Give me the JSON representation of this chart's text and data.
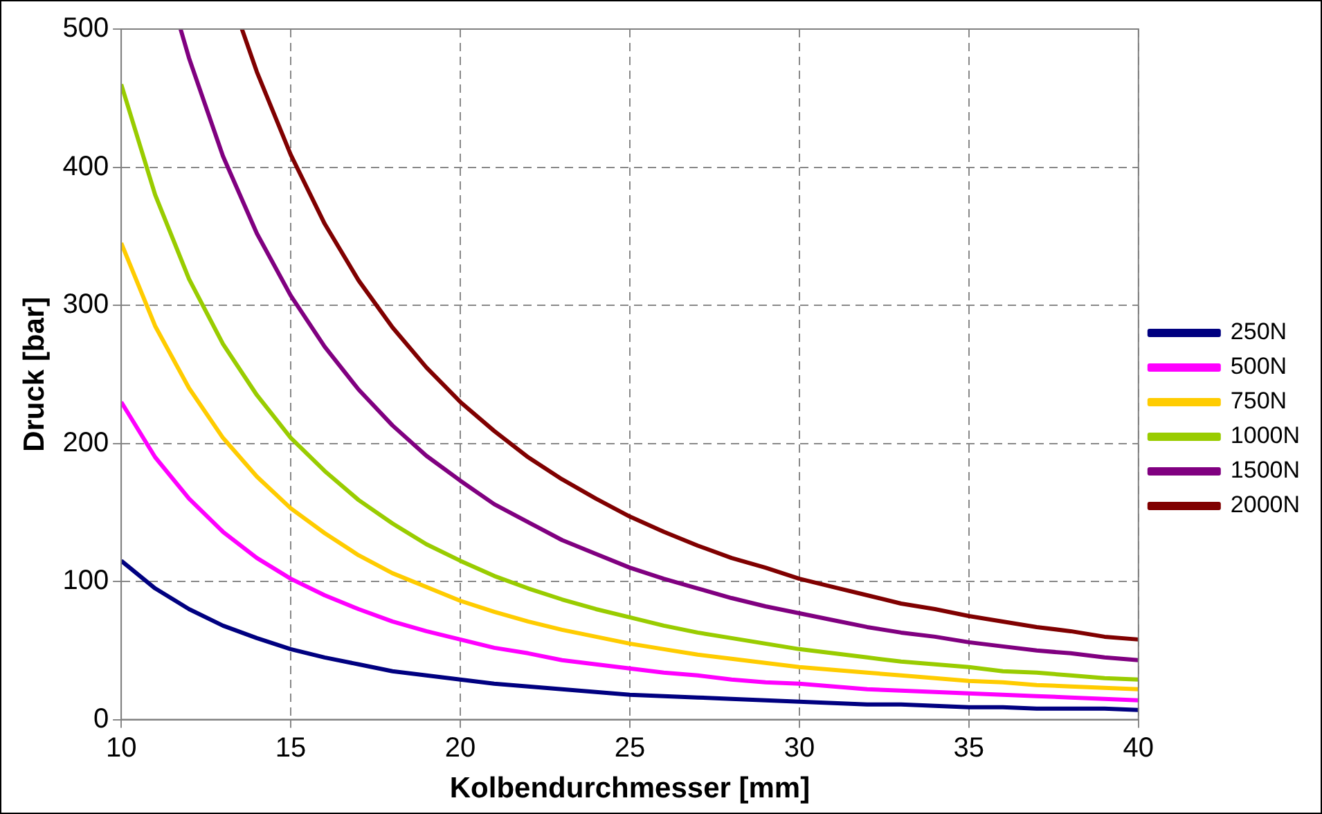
{
  "chart_data": {
    "type": "line",
    "xlabel": "Kolbendurchmesser [mm]",
    "ylabel": "Druck [bar]",
    "x": [
      10,
      11,
      12,
      13,
      14,
      15,
      16,
      17,
      18,
      19,
      20,
      21,
      22,
      23,
      24,
      25,
      26,
      27,
      28,
      29,
      30,
      31,
      32,
      33,
      34,
      35,
      36,
      37,
      38,
      39,
      40
    ],
    "xlim": [
      10,
      40
    ],
    "xticks": [
      10,
      15,
      20,
      25,
      30,
      35,
      40
    ],
    "ylim": [
      0,
      500
    ],
    "yticks": [
      0,
      100,
      200,
      300,
      400,
      500
    ],
    "grid": true,
    "legend": "right",
    "marker": "none",
    "line_style": "solid",
    "series": [
      {
        "name": "250N",
        "color": "#000080",
        "values": [
          115,
          95,
          80,
          68,
          59,
          51,
          45,
          40,
          35,
          32,
          29,
          26,
          24,
          22,
          20,
          18,
          17,
          16,
          15,
          14,
          13,
          12,
          11,
          11,
          10,
          9,
          9,
          8,
          8,
          8,
          7
        ]
      },
      {
        "name": "500N",
        "color": "#ff00ff",
        "values": [
          230,
          190,
          160,
          136,
          117,
          102,
          90,
          80,
          71,
          64,
          58,
          52,
          48,
          43,
          40,
          37,
          34,
          32,
          29,
          27,
          26,
          24,
          22,
          21,
          20,
          19,
          18,
          17,
          16,
          15,
          14
        ]
      },
      {
        "name": "750N",
        "color": "#ffcc00",
        "values": [
          345,
          285,
          240,
          204,
          176,
          153,
          135,
          119,
          106,
          96,
          86,
          78,
          71,
          65,
          60,
          55,
          51,
          47,
          44,
          41,
          38,
          36,
          34,
          32,
          30,
          28,
          27,
          25,
          24,
          23,
          22
        ]
      },
      {
        "name": "1000N",
        "color": "#99cc00",
        "values": [
          460,
          380,
          319,
          272,
          235,
          204,
          180,
          159,
          142,
          127,
          115,
          104,
          95,
          87,
          80,
          74,
          68,
          63,
          59,
          55,
          51,
          48,
          45,
          42,
          40,
          38,
          35,
          34,
          32,
          30,
          29
        ]
      },
      {
        "name": "1500N",
        "color": "#800080",
        "x": [
          11.75,
          12,
          13,
          14,
          15,
          16,
          17,
          18,
          19,
          20,
          21,
          22,
          23,
          24,
          25,
          26,
          27,
          28,
          29,
          30,
          31,
          32,
          33,
          34,
          35,
          36,
          37,
          38,
          39,
          40
        ],
        "values": [
          500,
          479,
          408,
          352,
          307,
          270,
          239,
          213,
          191,
          173,
          156,
          143,
          130,
          120,
          110,
          102,
          95,
          88,
          82,
          77,
          72,
          67,
          63,
          60,
          56,
          53,
          50,
          48,
          45,
          43
        ]
      },
      {
        "name": "2000N",
        "color": "#800000",
        "x": [
          13.56,
          14,
          15,
          16,
          17,
          18,
          19,
          20,
          21,
          22,
          23,
          24,
          25,
          26,
          27,
          28,
          29,
          30,
          31,
          32,
          33,
          34,
          35,
          36,
          37,
          38,
          39,
          40
        ],
        "values": [
          500,
          469,
          409,
          359,
          318,
          284,
          255,
          230,
          209,
          190,
          174,
          160,
          147,
          136,
          126,
          117,
          110,
          102,
          96,
          90,
          84,
          80,
          75,
          71,
          67,
          64,
          60,
          58
        ]
      }
    ]
  }
}
